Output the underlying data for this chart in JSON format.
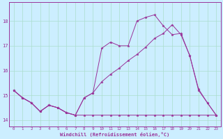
{
  "bg_color": "#cceeff",
  "line_color": "#993399",
  "grid_color": "#aaddcc",
  "xlabel": "Windchill (Refroidissement éolien,°C)",
  "xticks": [
    0,
    1,
    2,
    3,
    4,
    5,
    6,
    7,
    8,
    9,
    10,
    11,
    12,
    13,
    14,
    15,
    16,
    17,
    18,
    19,
    20,
    21,
    22,
    23
  ],
  "yticks": [
    14,
    15,
    16,
    17,
    18
  ],
  "xlim": [
    -0.5,
    23.5
  ],
  "ylim": [
    13.75,
    18.75
  ],
  "series1_x": [
    0,
    1,
    2,
    3,
    4,
    5,
    6,
    7,
    8,
    9,
    10,
    11,
    12,
    13,
    14,
    15,
    16,
    17,
    18,
    19,
    20,
    21,
    22,
    23
  ],
  "series1_y": [
    15.2,
    14.9,
    14.7,
    14.35,
    14.6,
    14.5,
    14.3,
    14.2,
    14.2,
    14.2,
    14.2,
    14.2,
    14.2,
    14.2,
    14.2,
    14.2,
    14.2,
    14.2,
    14.2,
    14.2,
    14.2,
    14.2,
    14.2,
    14.2
  ],
  "series2_x": [
    0,
    1,
    2,
    3,
    4,
    5,
    6,
    7,
    8,
    9,
    10,
    11,
    12,
    13,
    14,
    15,
    16,
    17,
    18,
    19,
    20,
    21,
    22,
    23
  ],
  "series2_y": [
    15.2,
    14.9,
    14.7,
    14.35,
    14.6,
    14.5,
    14.3,
    14.2,
    14.9,
    15.1,
    15.55,
    15.85,
    16.1,
    16.4,
    16.65,
    16.95,
    17.3,
    17.5,
    17.85,
    17.45,
    16.6,
    15.2,
    14.7,
    14.2
  ],
  "series3_x": [
    0,
    1,
    2,
    3,
    4,
    5,
    6,
    7,
    8,
    9,
    10,
    11,
    12,
    13,
    14,
    15,
    16,
    17,
    18,
    19,
    20,
    21,
    22,
    23
  ],
  "series3_y": [
    15.2,
    14.9,
    14.7,
    14.35,
    14.6,
    14.5,
    14.3,
    14.2,
    14.9,
    15.1,
    16.9,
    17.15,
    17.0,
    17.0,
    18.0,
    18.15,
    18.25,
    17.8,
    17.45,
    17.5,
    16.6,
    15.25,
    14.7,
    14.2
  ]
}
